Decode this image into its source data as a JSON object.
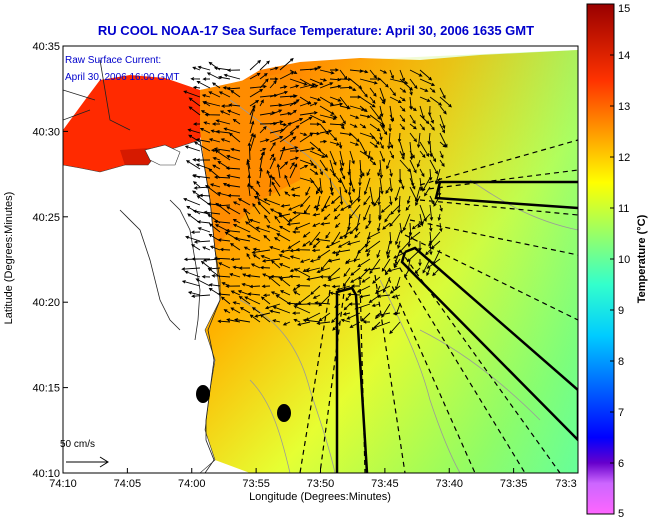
{
  "map": {
    "title": "RU COOL  NOAA-17 Sea Surface Temperature:  April 30, 2006 1635 GMT",
    "current_label_line1": "Raw Surface Current:",
    "current_label_line2": "April 30, 2006 16:00 GMT",
    "xlabel": "Longitude (Degrees:Minutes)",
    "ylabel": "Latitude (Degrees:Minutes)",
    "x_ticks": [
      "74:10",
      "74:05",
      "74:00",
      "73:55",
      "73:50",
      "73:45",
      "73:40",
      "73:35",
      "73:3"
    ],
    "y_ticks": [
      "40:35",
      "40:30",
      "40:25",
      "40:20",
      "40:15",
      "40:10"
    ],
    "scale_label": "50 cm/s",
    "colorbar": {
      "label": "Temperature (°C)",
      "ticks": [
        "15",
        "14",
        "13",
        "12",
        "11",
        "10",
        "9",
        "8",
        "7",
        "6",
        "5"
      ],
      "min": 5,
      "max": 15,
      "stops": [
        {
          "value": 5,
          "color": "#ff66ff"
        },
        {
          "value": 5.6,
          "color": "#cc66ff"
        },
        {
          "value": 6,
          "color": "#6600cc"
        },
        {
          "value": 6.5,
          "color": "#0000ff"
        },
        {
          "value": 7.5,
          "color": "#0066ff"
        },
        {
          "value": 8.5,
          "color": "#00ccff"
        },
        {
          "value": 9.5,
          "color": "#33ffcc"
        },
        {
          "value": 10.5,
          "color": "#99ff66"
        },
        {
          "value": 11.5,
          "color": "#ffff00"
        },
        {
          "value": 12.5,
          "color": "#ff9900"
        },
        {
          "value": 13.5,
          "color": "#ff3300"
        },
        {
          "value": 15,
          "color": "#990000"
        }
      ]
    }
  }
}
